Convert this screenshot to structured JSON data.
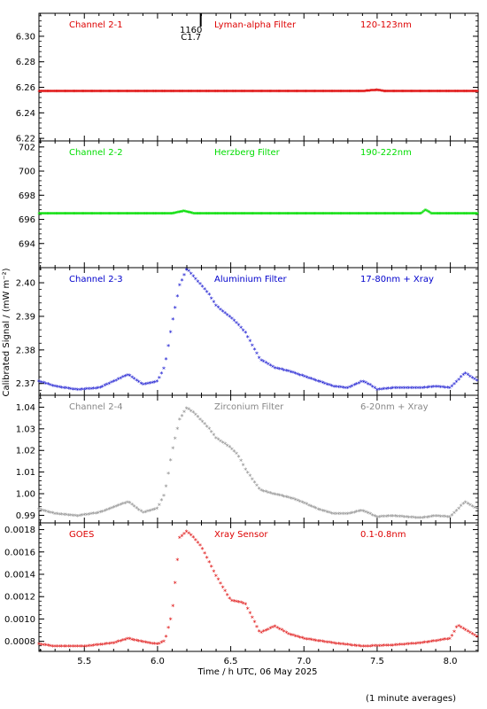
{
  "figure": {
    "ylabel": "Calibrated Signal / (mW m⁻²)",
    "xlabel": "Time / h UTC, 06 May 2025",
    "footnote": "(1 minute averages)",
    "annotation": {
      "lines": [
        "1160",
        "C1.7"
      ],
      "x": 6.18
    }
  },
  "chart_data": [
    {
      "type": "scatter",
      "labels": [
        "Channel 2-1",
        "Lyman-alpha Filter",
        "120-123nm"
      ],
      "color": "#dd0000",
      "xlim": [
        5.19,
        8.19
      ],
      "ylim": [
        6.218,
        6.318
      ],
      "yticks": [
        6.22,
        6.24,
        6.26,
        6.28,
        6.3
      ],
      "yticklabels": [
        "6.22",
        "6.24",
        "6.26",
        "6.28",
        "6.30"
      ],
      "x": [
        5.19,
        5.5,
        6.0,
        6.5,
        7.0,
        7.4,
        7.5,
        7.55,
        8.0,
        8.19
      ],
      "y": [
        6.257,
        6.257,
        6.257,
        6.257,
        6.257,
        6.257,
        6.258,
        6.257,
        6.257,
        6.257
      ]
    },
    {
      "type": "scatter",
      "labels": [
        "Channel 2-2",
        "Herzberg Filter",
        "190-222nm"
      ],
      "color": "#00dd00",
      "xlim": [
        5.19,
        8.19
      ],
      "ylim": [
        692.0,
        702.5
      ],
      "yticks": [
        694,
        696,
        698,
        700,
        702
      ],
      "yticklabels": [
        "694",
        "696",
        "698",
        "700",
        "702"
      ],
      "x": [
        5.19,
        5.6,
        6.1,
        6.18,
        6.25,
        6.8,
        7.4,
        7.8,
        7.83,
        7.87,
        8.19
      ],
      "y": [
        696.5,
        696.5,
        696.5,
        696.7,
        696.5,
        696.5,
        696.5,
        696.5,
        696.8,
        696.5,
        696.5
      ]
    },
    {
      "type": "scatter",
      "labels": [
        "Channel 2-3",
        "Aluminium Filter",
        "17-80nm + Xray"
      ],
      "color": "#0000cc",
      "xlim": [
        5.19,
        8.19
      ],
      "ylim": [
        2.3665,
        2.4045
      ],
      "yticks": [
        2.37,
        2.38,
        2.39,
        2.4
      ],
      "yticklabels": [
        "2.37",
        "2.38",
        "2.39",
        "2.40"
      ],
      "x": [
        5.19,
        5.3,
        5.45,
        5.6,
        5.7,
        5.8,
        5.85,
        5.9,
        6.0,
        6.05,
        6.1,
        6.15,
        6.2,
        6.25,
        6.3,
        6.35,
        6.4,
        6.5,
        6.55,
        6.6,
        6.7,
        6.8,
        6.9,
        7.0,
        7.1,
        7.2,
        7.3,
        7.4,
        7.45,
        7.5,
        7.6,
        7.8,
        7.9,
        8.0,
        8.1,
        8.19
      ],
      "y": [
        2.3705,
        2.369,
        2.368,
        2.3685,
        2.3705,
        2.3725,
        2.371,
        2.3695,
        2.3705,
        2.375,
        2.388,
        2.399,
        2.404,
        2.4015,
        2.399,
        2.3965,
        2.393,
        2.3895,
        2.3875,
        2.385,
        2.377,
        2.3745,
        2.3735,
        2.372,
        2.3705,
        2.369,
        2.3685,
        2.3705,
        2.3695,
        2.368,
        2.3685,
        2.3685,
        2.369,
        2.3685,
        2.373,
        2.3705
      ]
    },
    {
      "type": "scatter",
      "labels": [
        "Channel 2-4",
        "Zirconium Filter",
        "6-20nm + Xray"
      ],
      "color": "#888888",
      "xlim": [
        5.19,
        8.19
      ],
      "ylim": [
        0.9865,
        1.0455
      ],
      "yticks": [
        0.99,
        1.0,
        1.01,
        1.02,
        1.03,
        1.04
      ],
      "yticklabels": [
        "0.99",
        "1.00",
        "1.01",
        "1.02",
        "1.03",
        "1.04"
      ],
      "x": [
        5.19,
        5.3,
        5.45,
        5.6,
        5.7,
        5.8,
        5.85,
        5.9,
        6.0,
        6.05,
        6.1,
        6.15,
        6.2,
        6.25,
        6.3,
        6.35,
        6.4,
        6.5,
        6.55,
        6.6,
        6.7,
        6.8,
        6.9,
        7.0,
        7.1,
        7.2,
        7.3,
        7.4,
        7.45,
        7.5,
        7.6,
        7.8,
        7.9,
        8.0,
        8.1,
        8.19
      ],
      "y": [
        0.9925,
        0.9905,
        0.9895,
        0.991,
        0.9935,
        0.996,
        0.9935,
        0.991,
        0.993,
        1.0,
        1.0195,
        1.034,
        1.0395,
        1.037,
        1.0335,
        1.03,
        1.0255,
        1.021,
        1.0175,
        1.011,
        1.0015,
        0.9995,
        0.998,
        0.9955,
        0.9925,
        0.9905,
        0.9905,
        0.992,
        0.9905,
        0.989,
        0.9895,
        0.9885,
        0.9895,
        0.989,
        0.996,
        0.9925
      ]
    },
    {
      "type": "scatter",
      "labels": [
        "GOES",
        "Xray Sensor",
        "0.1-0.8nm"
      ],
      "color": "#dd0000",
      "xlim": [
        5.19,
        8.19
      ],
      "ylim": [
        0.00071,
        0.00186
      ],
      "yticks": [
        0.0008,
        0.001,
        0.0012,
        0.0014,
        0.0016,
        0.0018
      ],
      "yticklabels": [
        "0.0008",
        "0.0010",
        "0.0012",
        "0.0014",
        "0.0016",
        "0.0018"
      ],
      "x": [
        5.19,
        5.3,
        5.5,
        5.7,
        5.8,
        5.9,
        6.0,
        6.05,
        6.1,
        6.15,
        6.2,
        6.25,
        6.3,
        6.4,
        6.5,
        6.55,
        6.6,
        6.7,
        6.8,
        6.9,
        7.0,
        7.2,
        7.4,
        7.6,
        7.8,
        8.0,
        8.05,
        8.1,
        8.19
      ],
      "y": [
        0.00077,
        0.00075,
        0.00075,
        0.00078,
        0.00082,
        0.00079,
        0.00077,
        0.0008,
        0.00105,
        0.00172,
        0.00178,
        0.00172,
        0.00164,
        0.00138,
        0.00116,
        0.00115,
        0.00113,
        0.00087,
        0.00093,
        0.00086,
        0.00082,
        0.00078,
        0.00075,
        0.00076,
        0.00078,
        0.00082,
        0.00094,
        0.0009,
        0.00083
      ]
    }
  ],
  "xaxis": {
    "xlim": [
      5.19,
      8.19
    ],
    "ticks": [
      5.5,
      6.0,
      6.5,
      7.0,
      7.5,
      8.0
    ],
    "ticklabels": [
      "5.5",
      "6.0",
      "6.5",
      "7.0",
      "7.5",
      "8.0"
    ]
  }
}
